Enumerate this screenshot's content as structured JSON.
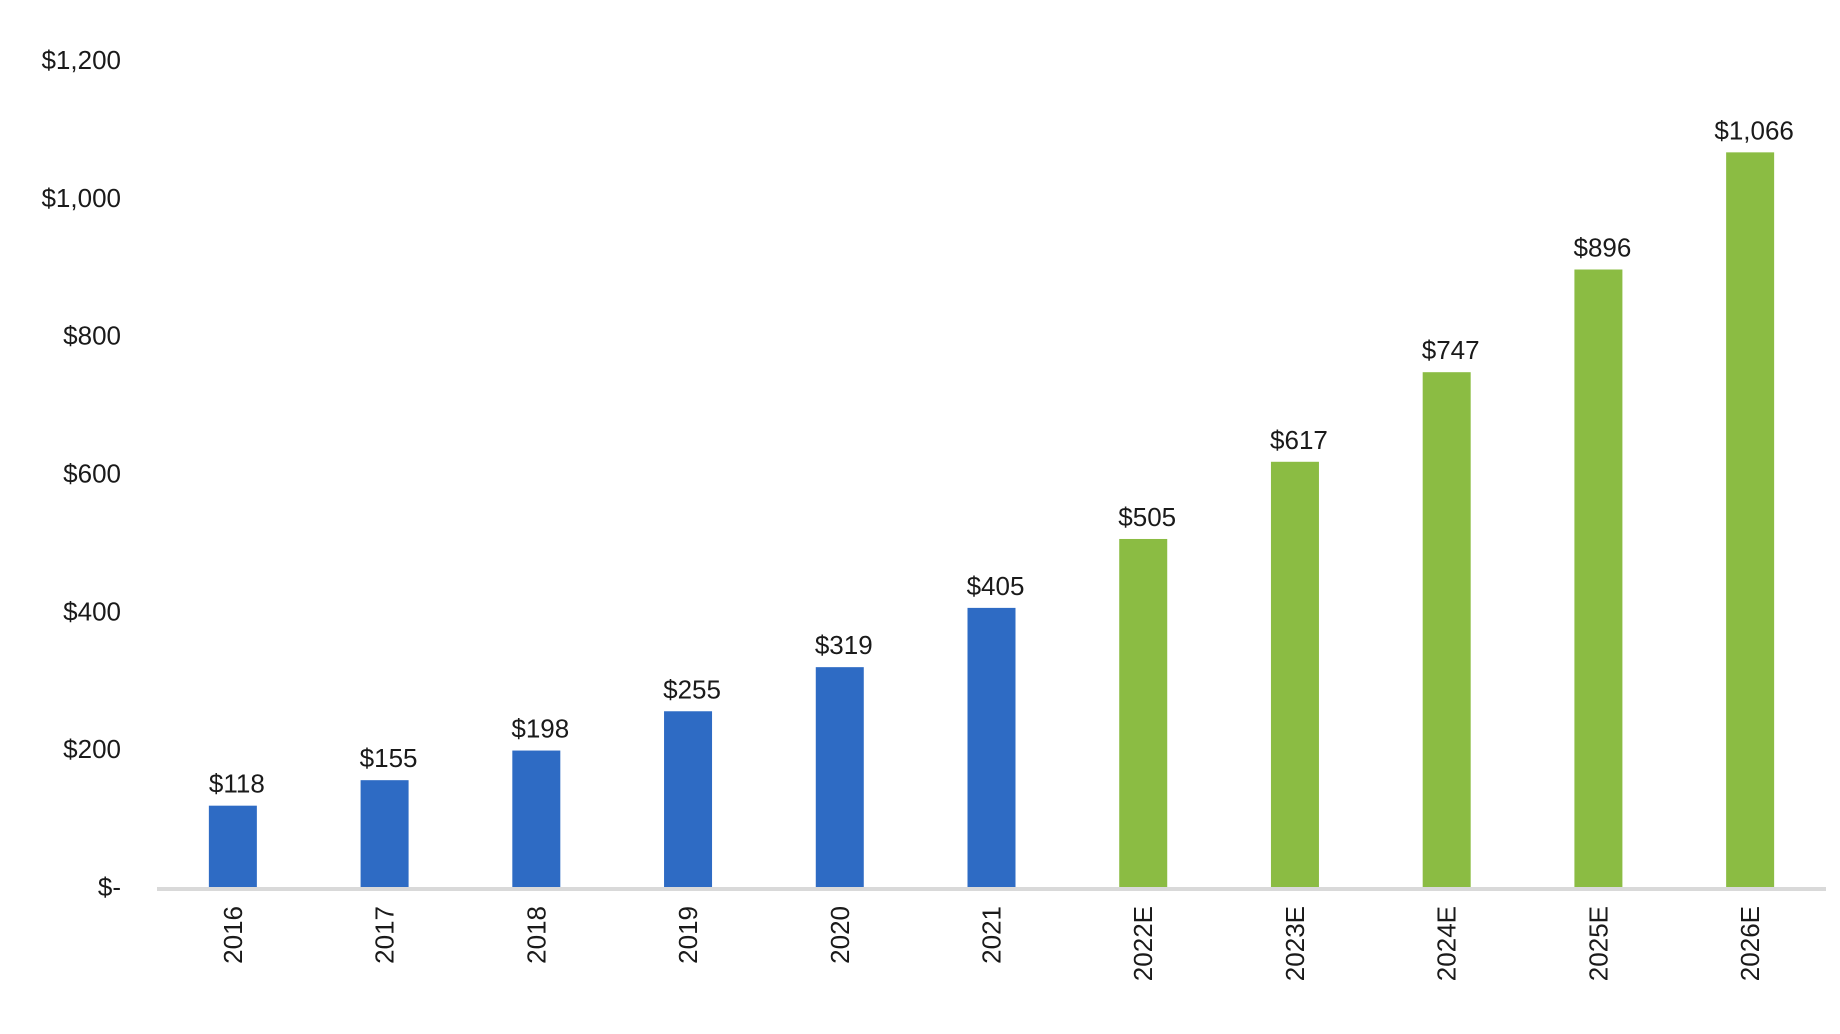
{
  "chart_data": {
    "type": "bar",
    "categories": [
      "2016",
      "2017",
      "2018",
      "2019",
      "2020",
      "2021",
      "2022E",
      "2023E",
      "2024E",
      "2025E",
      "2026E"
    ],
    "values": [
      118,
      155,
      198,
      255,
      319,
      405,
      505,
      617,
      747,
      896,
      1066
    ],
    "data_labels": [
      "$118",
      "$155",
      "$198",
      "$255",
      "$319",
      "$405",
      "$505",
      "$617",
      "$747",
      "$896",
      "$1,066"
    ],
    "y_ticks": [
      {
        "value": 0,
        "label": "$-"
      },
      {
        "value": 200,
        "label": "$200"
      },
      {
        "value": 400,
        "label": "$400"
      },
      {
        "value": 600,
        "label": "$600"
      },
      {
        "value": 800,
        "label": "$800"
      },
      {
        "value": 1000,
        "label": "$1,000"
      },
      {
        "value": 1200,
        "label": "$1,200"
      }
    ],
    "ylim": [
      0,
      1200
    ],
    "title": "",
    "xlabel": "",
    "ylabel": "",
    "grid": false,
    "legend": "none",
    "colors": {
      "actual": "#2e6bc4",
      "estimate": "#8bbc43",
      "axis": "#d9d9d9"
    },
    "bar_color_by_category": [
      "actual",
      "actual",
      "actual",
      "actual",
      "actual",
      "actual",
      "estimate",
      "estimate",
      "estimate",
      "estimate",
      "estimate"
    ]
  }
}
